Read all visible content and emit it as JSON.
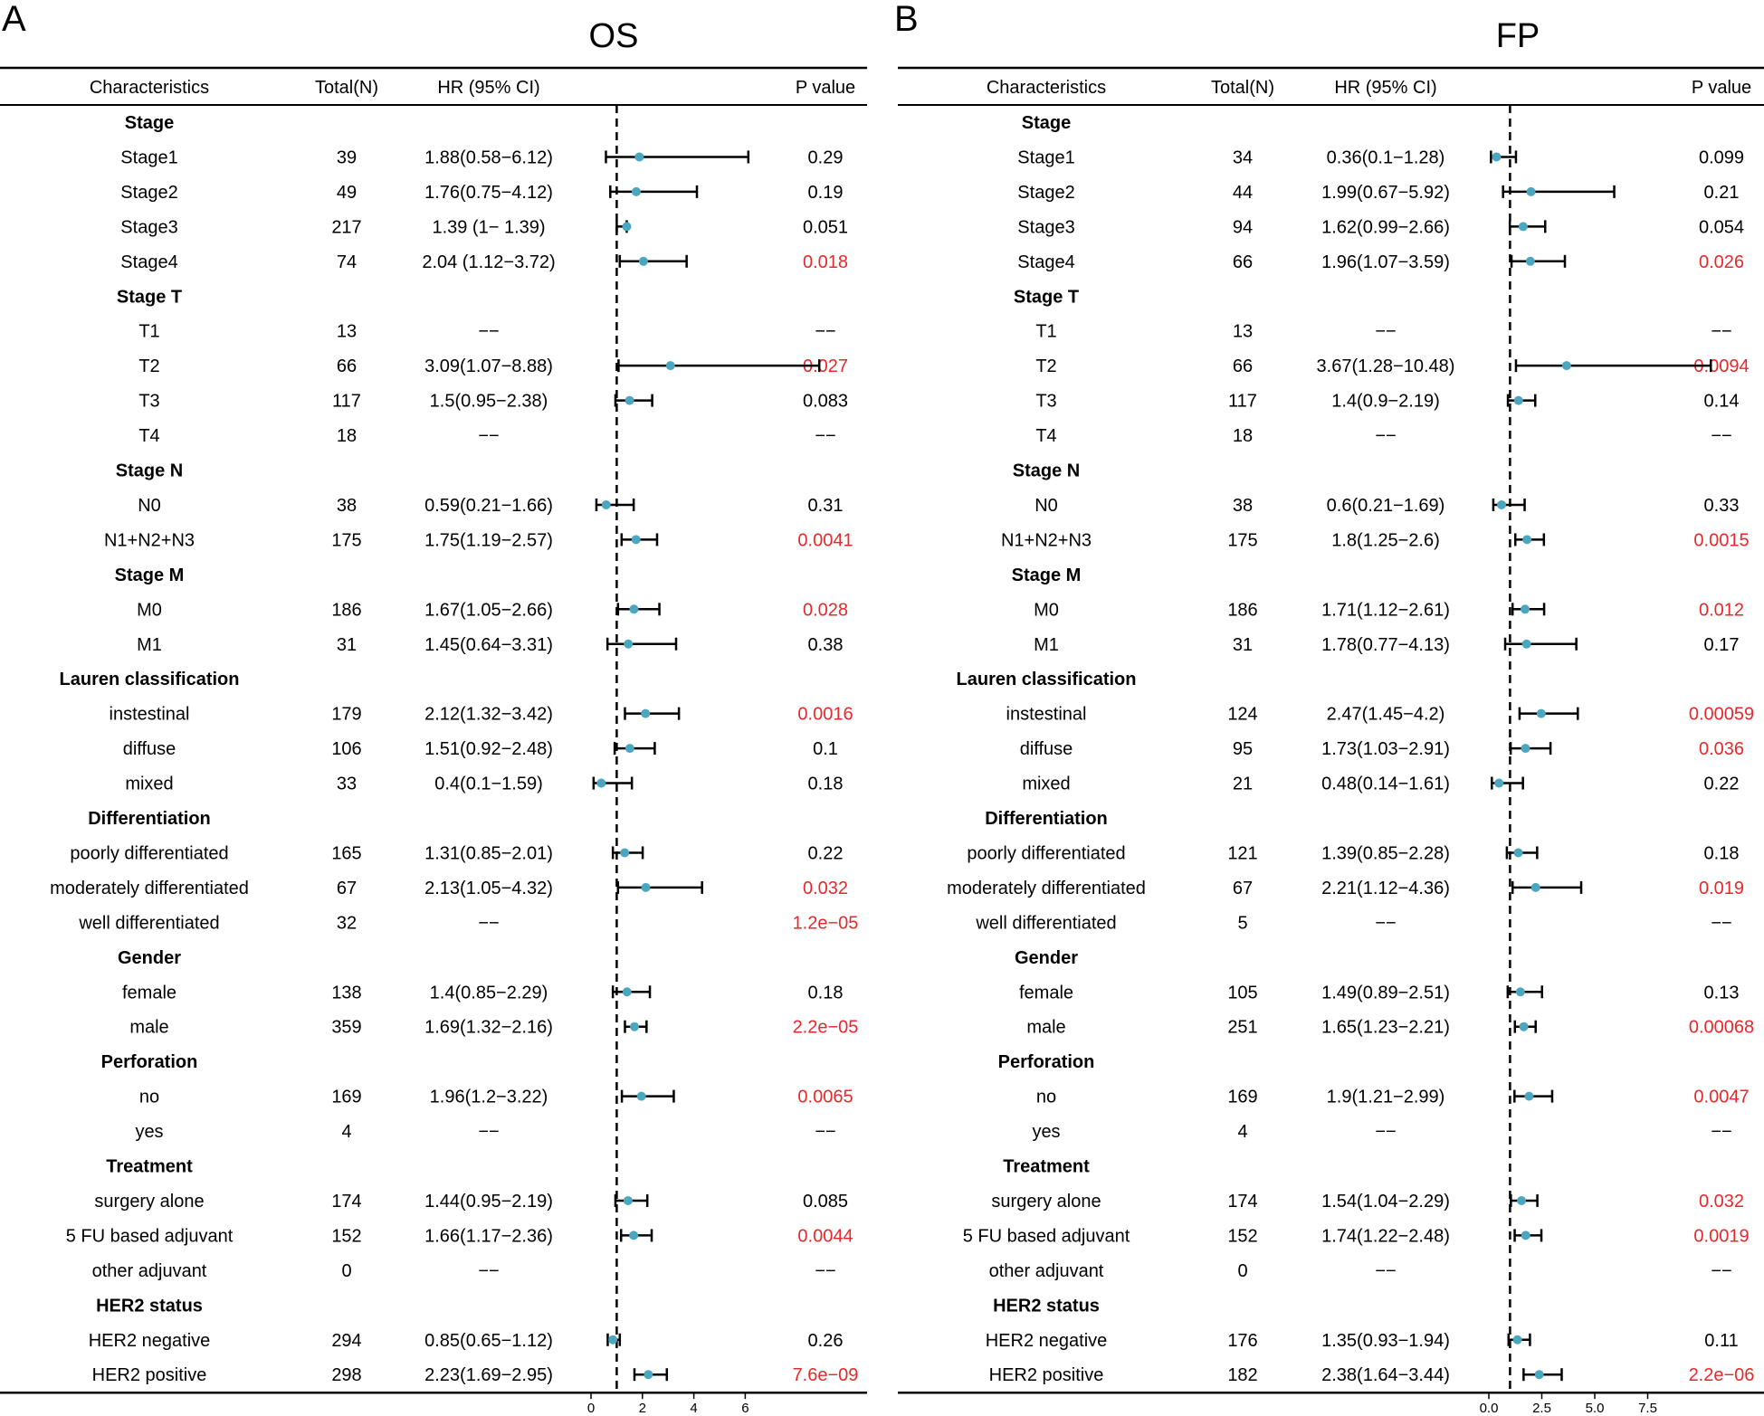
{
  "colors": {
    "point": "#4BA6C0",
    "line": "#000000",
    "significant": "#E8282B",
    "text": "#000000"
  },
  "chart_data": [
    {
      "type": "forest",
      "panel_label": "A",
      "title": "OS",
      "columns": [
        "Characteristics",
        "Total(N)",
        "HR (95% CI)",
        "P value"
      ],
      "reference_line": 1,
      "xlim": [
        0,
        7.2
      ],
      "xticks": [
        0,
        2,
        4,
        6
      ],
      "xtick_labels": [
        "0",
        "2",
        "4",
        "6"
      ],
      "rows": [
        {
          "label": "Stage",
          "header": true
        },
        {
          "label": "Stage1",
          "n": "39",
          "hr_text": "1.88(0.58−6.12)",
          "p": "0.29",
          "sig": false,
          "hr": 1.88,
          "lo": 0.58,
          "hi": 6.12
        },
        {
          "label": "Stage2",
          "n": "49",
          "hr_text": "1.76(0.75−4.12)",
          "p": "0.19",
          "sig": false,
          "hr": 1.76,
          "lo": 0.75,
          "hi": 4.12
        },
        {
          "label": "Stage3",
          "n": "217",
          "hr_text": "1.39 (1− 1.39)",
          "p": "0.051",
          "sig": false,
          "hr": 1.39,
          "lo": 1.0,
          "hi": 1.39
        },
        {
          "label": "Stage4",
          "n": "74",
          "hr_text": "2.04 (1.12−3.72)",
          "p": "0.018",
          "sig": true,
          "hr": 2.04,
          "lo": 1.12,
          "hi": 3.72
        },
        {
          "label": "Stage T",
          "header": true
        },
        {
          "label": "T1",
          "n": "13",
          "hr_text": "−−",
          "p": "−−",
          "sig": false
        },
        {
          "label": "T2",
          "n": "66",
          "hr_text": "3.09(1.07−8.88)",
          "p": "0.027",
          "sig": true,
          "hr": 3.09,
          "lo": 1.07,
          "hi": 8.88,
          "arrow": true
        },
        {
          "label": "T3",
          "n": "117",
          "hr_text": "1.5(0.95−2.38)",
          "p": "0.083",
          "sig": false,
          "hr": 1.5,
          "lo": 0.95,
          "hi": 2.38
        },
        {
          "label": "T4",
          "n": "18",
          "hr_text": "−−",
          "p": "−−",
          "sig": false
        },
        {
          "label": "Stage N",
          "header": true
        },
        {
          "label": "N0",
          "n": "38",
          "hr_text": "0.59(0.21−1.66)",
          "p": "0.31",
          "sig": false,
          "hr": 0.59,
          "lo": 0.21,
          "hi": 1.66
        },
        {
          "label": "N1+N2+N3",
          "n": "175",
          "hr_text": "1.75(1.19−2.57)",
          "p": "0.0041",
          "sig": true,
          "hr": 1.75,
          "lo": 1.19,
          "hi": 2.57
        },
        {
          "label": "Stage M",
          "header": true
        },
        {
          "label": "M0",
          "n": "186",
          "hr_text": "1.67(1.05−2.66)",
          "p": "0.028",
          "sig": true,
          "hr": 1.67,
          "lo": 1.05,
          "hi": 2.66
        },
        {
          "label": "M1",
          "n": "31",
          "hr_text": "1.45(0.64−3.31)",
          "p": "0.38",
          "sig": false,
          "hr": 1.45,
          "lo": 0.64,
          "hi": 3.31
        },
        {
          "label": "Lauren classification",
          "header": true
        },
        {
          "label": "instestinal",
          "n": "179",
          "hr_text": "2.12(1.32−3.42)",
          "p": "0.0016",
          "sig": true,
          "hr": 2.12,
          "lo": 1.32,
          "hi": 3.42
        },
        {
          "label": "diffuse",
          "n": "106",
          "hr_text": "1.51(0.92−2.48)",
          "p": "0.1",
          "sig": false,
          "hr": 1.51,
          "lo": 0.92,
          "hi": 2.48
        },
        {
          "label": "mixed",
          "n": "33",
          "hr_text": "0.4(0.1−1.59)",
          "p": "0.18",
          "sig": false,
          "hr": 0.4,
          "lo": 0.1,
          "hi": 1.59
        },
        {
          "label": "Differentiation",
          "header": true
        },
        {
          "label": "poorly differentiated",
          "n": "165",
          "hr_text": "1.31(0.85−2.01)",
          "p": "0.22",
          "sig": false,
          "hr": 1.31,
          "lo": 0.85,
          "hi": 2.01
        },
        {
          "label": "moderately differentiated",
          "n": "67",
          "hr_text": "2.13(1.05−4.32)",
          "p": "0.032",
          "sig": true,
          "hr": 2.13,
          "lo": 1.05,
          "hi": 4.32
        },
        {
          "label": "well differentiated",
          "n": "32",
          "hr_text": "−−",
          "p": "1.2e−05",
          "sig": true
        },
        {
          "label": "Gender",
          "header": true
        },
        {
          "label": "female",
          "n": "138",
          "hr_text": "1.4(0.85−2.29)",
          "p": "0.18",
          "sig": false,
          "hr": 1.4,
          "lo": 0.85,
          "hi": 2.29
        },
        {
          "label": "male",
          "n": "359",
          "hr_text": "1.69(1.32−2.16)",
          "p": "2.2e−05",
          "sig": true,
          "hr": 1.69,
          "lo": 1.32,
          "hi": 2.16
        },
        {
          "label": "Perforation",
          "header": true
        },
        {
          "label": "no",
          "n": "169",
          "hr_text": "1.96(1.2−3.22)",
          "p": "0.0065",
          "sig": true,
          "hr": 1.96,
          "lo": 1.2,
          "hi": 3.22
        },
        {
          "label": "yes",
          "n": "4",
          "hr_text": "−−",
          "p": "−−",
          "sig": false
        },
        {
          "label": "Treatment",
          "header": true
        },
        {
          "label": "surgery alone",
          "n": "174",
          "hr_text": "1.44(0.95−2.19)",
          "p": "0.085",
          "sig": false,
          "hr": 1.44,
          "lo": 0.95,
          "hi": 2.19
        },
        {
          "label": "5 FU based adjuvant",
          "n": "152",
          "hr_text": "1.66(1.17−2.36)",
          "p": "0.0044",
          "sig": true,
          "hr": 1.66,
          "lo": 1.17,
          "hi": 2.36
        },
        {
          "label": "other adjuvant",
          "n": "0",
          "hr_text": "−−",
          "p": "−−",
          "sig": false
        },
        {
          "label": "HER2 status",
          "header": true
        },
        {
          "label": "HER2 negative",
          "n": "294",
          "hr_text": "0.85(0.65−1.12)",
          "p": "0.26",
          "sig": false,
          "hr": 0.85,
          "lo": 0.65,
          "hi": 1.12
        },
        {
          "label": "HER2 positive",
          "n": "298",
          "hr_text": "2.23(1.69−2.95)",
          "p": "7.6e−09",
          "sig": true,
          "hr": 2.23,
          "lo": 1.69,
          "hi": 2.95
        }
      ]
    },
    {
      "type": "forest",
      "panel_label": "B",
      "title": "FP",
      "columns": [
        "Characteristics",
        "Total(N)",
        "HR (95% CI)",
        "P value"
      ],
      "reference_line": 1,
      "xlim": [
        0,
        8.6
      ],
      "xticks": [
        0,
        2.5,
        5,
        7.5
      ],
      "xtick_labels": [
        "0.0",
        "2.5",
        "5.0",
        "7.5"
      ],
      "rows": [
        {
          "label": "Stage",
          "header": true
        },
        {
          "label": "Stage1",
          "n": "34",
          "hr_text": "0.36(0.1−1.28)",
          "p": "0.099",
          "sig": false,
          "hr": 0.36,
          "lo": 0.1,
          "hi": 1.28
        },
        {
          "label": "Stage2",
          "n": "44",
          "hr_text": "1.99(0.67−5.92)",
          "p": "0.21",
          "sig": false,
          "hr": 1.99,
          "lo": 0.67,
          "hi": 5.92
        },
        {
          "label": "Stage3",
          "n": "94",
          "hr_text": "1.62(0.99−2.66)",
          "p": "0.054",
          "sig": false,
          "hr": 1.62,
          "lo": 0.99,
          "hi": 2.66
        },
        {
          "label": "Stage4",
          "n": "66",
          "hr_text": "1.96(1.07−3.59)",
          "p": "0.026",
          "sig": true,
          "hr": 1.96,
          "lo": 1.07,
          "hi": 3.59
        },
        {
          "label": "Stage T",
          "header": true
        },
        {
          "label": "T1",
          "n": "13",
          "hr_text": "−−",
          "p": "−−",
          "sig": false
        },
        {
          "label": "T2",
          "n": "66",
          "hr_text": "3.67(1.28−10.48)",
          "p": "0.0094",
          "sig": true,
          "hr": 3.67,
          "lo": 1.28,
          "hi": 10.48,
          "arrow": true
        },
        {
          "label": "T3",
          "n": "117",
          "hr_text": "1.4(0.9−2.19)",
          "p": "0.14",
          "sig": false,
          "hr": 1.4,
          "lo": 0.9,
          "hi": 2.19
        },
        {
          "label": "T4",
          "n": "18",
          "hr_text": "−−",
          "p": "−−",
          "sig": false
        },
        {
          "label": "Stage N",
          "header": true
        },
        {
          "label": "N0",
          "n": "38",
          "hr_text": "0.6(0.21−1.69)",
          "p": "0.33",
          "sig": false,
          "hr": 0.6,
          "lo": 0.21,
          "hi": 1.69
        },
        {
          "label": "N1+N2+N3",
          "n": "175",
          "hr_text": "1.8(1.25−2.6)",
          "p": "0.0015",
          "sig": true,
          "hr": 1.8,
          "lo": 1.25,
          "hi": 2.6
        },
        {
          "label": "Stage M",
          "header": true
        },
        {
          "label": "M0",
          "n": "186",
          "hr_text": "1.71(1.12−2.61)",
          "p": "0.012",
          "sig": true,
          "hr": 1.71,
          "lo": 1.12,
          "hi": 2.61
        },
        {
          "label": "M1",
          "n": "31",
          "hr_text": "1.78(0.77−4.13)",
          "p": "0.17",
          "sig": false,
          "hr": 1.78,
          "lo": 0.77,
          "hi": 4.13
        },
        {
          "label": "Lauren classification",
          "header": true
        },
        {
          "label": "instestinal",
          "n": "124",
          "hr_text": "2.47(1.45−4.2)",
          "p": "0.00059",
          "sig": true,
          "hr": 2.47,
          "lo": 1.45,
          "hi": 4.2
        },
        {
          "label": "diffuse",
          "n": "95",
          "hr_text": "1.73(1.03−2.91)",
          "p": "0.036",
          "sig": true,
          "hr": 1.73,
          "lo": 1.03,
          "hi": 2.91
        },
        {
          "label": "mixed",
          "n": "21",
          "hr_text": "0.48(0.14−1.61)",
          "p": "0.22",
          "sig": false,
          "hr": 0.48,
          "lo": 0.14,
          "hi": 1.61
        },
        {
          "label": "Differentiation",
          "header": true
        },
        {
          "label": "poorly differentiated",
          "n": "121",
          "hr_text": "1.39(0.85−2.28)",
          "p": "0.18",
          "sig": false,
          "hr": 1.39,
          "lo": 0.85,
          "hi": 2.28
        },
        {
          "label": "moderately differentiated",
          "n": "67",
          "hr_text": "2.21(1.12−4.36)",
          "p": "0.019",
          "sig": true,
          "hr": 2.21,
          "lo": 1.12,
          "hi": 4.36
        },
        {
          "label": "well differentiated",
          "n": "5",
          "hr_text": "−−",
          "p": "−−",
          "sig": false
        },
        {
          "label": "Gender",
          "header": true
        },
        {
          "label": "female",
          "n": "105",
          "hr_text": "1.49(0.89−2.51)",
          "p": "0.13",
          "sig": false,
          "hr": 1.49,
          "lo": 0.89,
          "hi": 2.51
        },
        {
          "label": "male",
          "n": "251",
          "hr_text": "1.65(1.23−2.21)",
          "p": "0.00068",
          "sig": true,
          "hr": 1.65,
          "lo": 1.23,
          "hi": 2.21
        },
        {
          "label": "Perforation",
          "header": true
        },
        {
          "label": "no",
          "n": "169",
          "hr_text": "1.9(1.21−2.99)",
          "p": "0.0047",
          "sig": true,
          "hr": 1.9,
          "lo": 1.21,
          "hi": 2.99
        },
        {
          "label": "yes",
          "n": "4",
          "hr_text": "−−",
          "p": "−−",
          "sig": false
        },
        {
          "label": "Treatment",
          "header": true
        },
        {
          "label": "surgery alone",
          "n": "174",
          "hr_text": "1.54(1.04−2.29)",
          "p": "0.032",
          "sig": true,
          "hr": 1.54,
          "lo": 1.04,
          "hi": 2.29
        },
        {
          "label": "5 FU based adjuvant",
          "n": "152",
          "hr_text": "1.74(1.22−2.48)",
          "p": "0.0019",
          "sig": true,
          "hr": 1.74,
          "lo": 1.22,
          "hi": 2.48
        },
        {
          "label": "other adjuvant",
          "n": "0",
          "hr_text": "−−",
          "p": "−−",
          "sig": false
        },
        {
          "label": "HER2 status",
          "header": true
        },
        {
          "label": "HER2 negative",
          "n": "176",
          "hr_text": "1.35(0.93−1.94)",
          "p": "0.11",
          "sig": false,
          "hr": 1.35,
          "lo": 0.93,
          "hi": 1.94
        },
        {
          "label": "HER2 positive",
          "n": "182",
          "hr_text": "2.38(1.64−3.44)",
          "p": "2.2e−06",
          "sig": true,
          "hr": 2.38,
          "lo": 1.64,
          "hi": 3.44
        }
      ]
    }
  ]
}
